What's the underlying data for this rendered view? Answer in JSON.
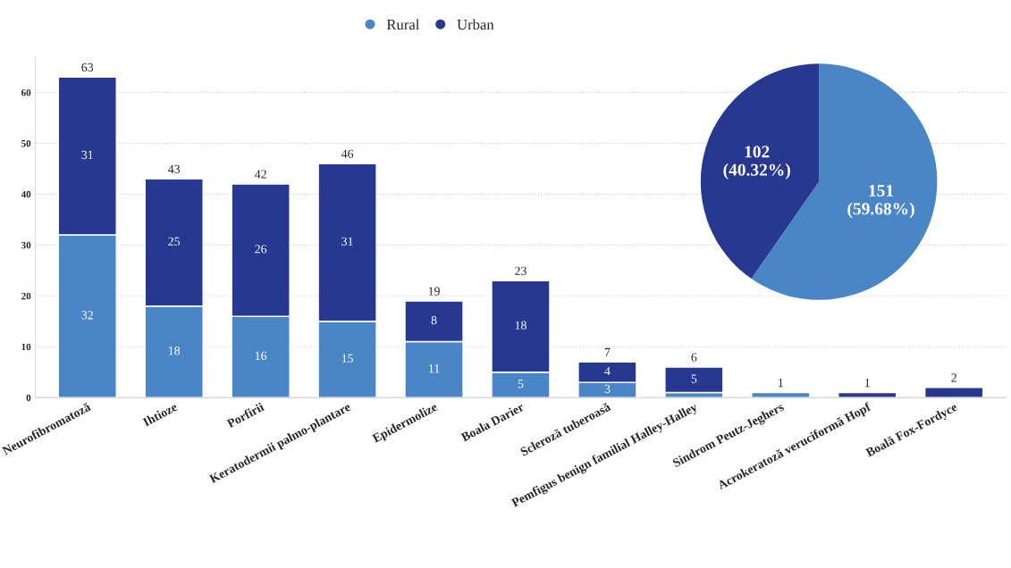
{
  "chart_data": [
    {
      "type": "bar",
      "stacked": true,
      "categories": [
        "Neurofibromatoză",
        "Ihtioze",
        "Porfirii",
        "Keratodermii palmo-plantare",
        "Epidermolize",
        "Boala Darier",
        "Scleroză tuberoasă",
        "Pemfigus benign familial Halley-Halley",
        "Sindrom Peutz-Jeghers",
        "Acrokeratoză veruciformă Hopf",
        "Boală Fox-Fordyce"
      ],
      "series": [
        {
          "color": "#4a86c6",
          "values": [
            32,
            18,
            16,
            15,
            11,
            5,
            3,
            1,
            1,
            null,
            null
          ],
          "value_labels": [
            "32",
            "18",
            "16",
            "15",
            "11",
            "5",
            "3",
            null,
            null,
            null,
            null
          ]
        },
        {
          "color": "#283891",
          "values": [
            31,
            25,
            26,
            31,
            8,
            18,
            4,
            5,
            null,
            1,
            2
          ],
          "value_labels": [
            "31",
            "25",
            "26",
            "31",
            "8",
            "18",
            "4",
            "5",
            null,
            null,
            null
          ]
        }
      ],
      "totals": [
        "63",
        "43",
        "42",
        "46",
        "19",
        "23",
        "7",
        "6",
        "1",
        "1",
        "2"
      ],
      "ylim": [
        0,
        67
      ],
      "yticks": [
        0,
        10,
        20,
        30,
        40,
        50,
        60
      ],
      "grid": "y"
    },
    {
      "type": "pie",
      "legend": "top",
      "categories": [
        "Rural",
        "Urban"
      ],
      "values": [
        151,
        102
      ],
      "colors": [
        "#4a86c6",
        "#283891"
      ],
      "value_labels": [
        "151\n(59.68%)",
        "102\n(40.32%)"
      ]
    }
  ]
}
